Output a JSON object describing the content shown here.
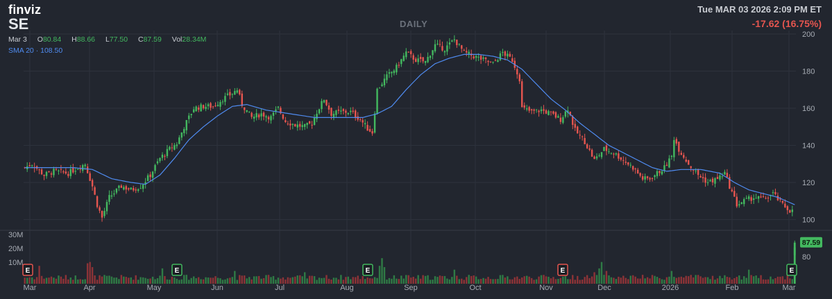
{
  "logo": "finviz",
  "ticker": "SE",
  "period_label": "DAILY",
  "datetime": "Tue MAR 03 2026 2:09 PM ET",
  "change": "-17.62 (16.75%)",
  "ohlc": {
    "date": "Mar 3",
    "o_label": "O",
    "open": "80.84",
    "h_label": "H",
    "high": "88.66",
    "l_label": "L",
    "low": "77.50",
    "c_label": "C",
    "close": "87.59",
    "vol_label": "Vol",
    "volume": "28.34M"
  },
  "sma": {
    "label": "SMA 20",
    "value": "108.50",
    "color": "#4f8bf0"
  },
  "price_tag": "87.59",
  "colors": {
    "up": "#43b85f",
    "down": "#e5554f",
    "background": "#22262f",
    "grid": "#2d323c",
    "sma": "#4f8bf0"
  },
  "chart_data": {
    "type": "candlestick",
    "price_axis": {
      "ticks": [
        200,
        180,
        160,
        140,
        120,
        100,
        80
      ],
      "ylim": [
        78,
        202
      ]
    },
    "volume_axis": {
      "ticks": [
        "30M",
        "20M",
        "10M"
      ]
    },
    "x_labels": [
      "Mar",
      "Apr",
      "May",
      "Jun",
      "Jul",
      "Aug",
      "Sep",
      "Oct",
      "Nov",
      "Dec",
      "2026",
      "Feb",
      "Mar"
    ],
    "price_path": [
      [
        0,
        128
      ],
      [
        3,
        130
      ],
      [
        8,
        124
      ],
      [
        12,
        126
      ],
      [
        18,
        125
      ],
      [
        22,
        128
      ],
      [
        25,
        130
      ],
      [
        28,
        118
      ],
      [
        30,
        108
      ],
      [
        32,
        101
      ],
      [
        35,
        112
      ],
      [
        40,
        118
      ],
      [
        44,
        116
      ],
      [
        48,
        118
      ],
      [
        52,
        124
      ],
      [
        56,
        133
      ],
      [
        60,
        138
      ],
      [
        63,
        141
      ],
      [
        66,
        150
      ],
      [
        70,
        160
      ],
      [
        74,
        161
      ],
      [
        78,
        161
      ],
      [
        82,
        165
      ],
      [
        86,
        168
      ],
      [
        88,
        170
      ],
      [
        90,
        162
      ],
      [
        94,
        155
      ],
      [
        98,
        157
      ],
      [
        102,
        155
      ],
      [
        105,
        160
      ],
      [
        108,
        153
      ],
      [
        112,
        151
      ],
      [
        116,
        150
      ],
      [
        119,
        152
      ],
      [
        121,
        158
      ],
      [
        124,
        165
      ],
      [
        127,
        157
      ],
      [
        131,
        158
      ],
      [
        135,
        158
      ],
      [
        139,
        154
      ],
      [
        142,
        149
      ],
      [
        144,
        147
      ],
      [
        146,
        170
      ],
      [
        150,
        177
      ],
      [
        154,
        182
      ],
      [
        158,
        190
      ],
      [
        162,
        186
      ],
      [
        166,
        185
      ],
      [
        170,
        194
      ],
      [
        174,
        192
      ],
      [
        178,
        197
      ],
      [
        182,
        190
      ],
      [
        186,
        188
      ],
      [
        190,
        186
      ],
      [
        194,
        184
      ],
      [
        198,
        190
      ],
      [
        202,
        186
      ],
      [
        205,
        176
      ],
      [
        206,
        160
      ],
      [
        210,
        158
      ],
      [
        214,
        159
      ],
      [
        218,
        157
      ],
      [
        222,
        154
      ],
      [
        225,
        160
      ],
      [
        228,
        148
      ],
      [
        232,
        142
      ],
      [
        236,
        132
      ],
      [
        240,
        138
      ],
      [
        244,
        136
      ],
      [
        248,
        132
      ],
      [
        252,
        128
      ],
      [
        256,
        122
      ],
      [
        259,
        122
      ],
      [
        262,
        125
      ],
      [
        265,
        128
      ],
      [
        268,
        134
      ],
      [
        269,
        144
      ],
      [
        271,
        138
      ],
      [
        275,
        130
      ],
      [
        279,
        124
      ],
      [
        283,
        120
      ],
      [
        287,
        122
      ],
      [
        290,
        125
      ],
      [
        292,
        118
      ],
      [
        295,
        108
      ],
      [
        298,
        110
      ],
      [
        302,
        112
      ],
      [
        306,
        111
      ],
      [
        310,
        114
      ],
      [
        314,
        108
      ],
      [
        317,
        105
      ],
      [
        319,
        104
      ]
    ],
    "sma_path": [
      [
        0,
        128
      ],
      [
        10,
        128
      ],
      [
        20,
        128
      ],
      [
        28,
        127
      ],
      [
        36,
        122
      ],
      [
        44,
        120
      ],
      [
        50,
        119
      ],
      [
        56,
        124
      ],
      [
        62,
        133
      ],
      [
        68,
        143
      ],
      [
        74,
        150
      ],
      [
        80,
        156
      ],
      [
        86,
        161
      ],
      [
        92,
        162
      ],
      [
        100,
        159
      ],
      [
        110,
        157
      ],
      [
        120,
        155
      ],
      [
        130,
        155
      ],
      [
        140,
        155
      ],
      [
        146,
        157
      ],
      [
        152,
        161
      ],
      [
        158,
        170
      ],
      [
        164,
        178
      ],
      [
        170,
        184
      ],
      [
        176,
        187
      ],
      [
        182,
        189
      ],
      [
        188,
        189
      ],
      [
        194,
        188
      ],
      [
        200,
        186
      ],
      [
        206,
        181
      ],
      [
        212,
        173
      ],
      [
        218,
        165
      ],
      [
        224,
        159
      ],
      [
        230,
        152
      ],
      [
        236,
        146
      ],
      [
        242,
        140
      ],
      [
        248,
        136
      ],
      [
        254,
        132
      ],
      [
        260,
        128
      ],
      [
        266,
        126
      ],
      [
        272,
        127
      ],
      [
        280,
        127
      ],
      [
        288,
        125
      ],
      [
        294,
        120
      ],
      [
        300,
        116
      ],
      [
        306,
        114
      ],
      [
        312,
        112
      ],
      [
        319,
        108
      ]
    ],
    "last_bar": {
      "open": 80.84,
      "high": 88.66,
      "low": 77.5,
      "close": 87.59,
      "volume_m": 28.34
    },
    "earnings_markers": [
      {
        "label": "E",
        "kind": "down",
        "month": "Mar"
      },
      {
        "label": "E",
        "kind": "up",
        "month": "May"
      },
      {
        "label": "E",
        "kind": "up",
        "month": "Aug"
      },
      {
        "label": "E",
        "kind": "down",
        "month": "Nov"
      },
      {
        "label": "E",
        "kind": "up",
        "month": "Mar"
      }
    ],
    "grid": true
  }
}
